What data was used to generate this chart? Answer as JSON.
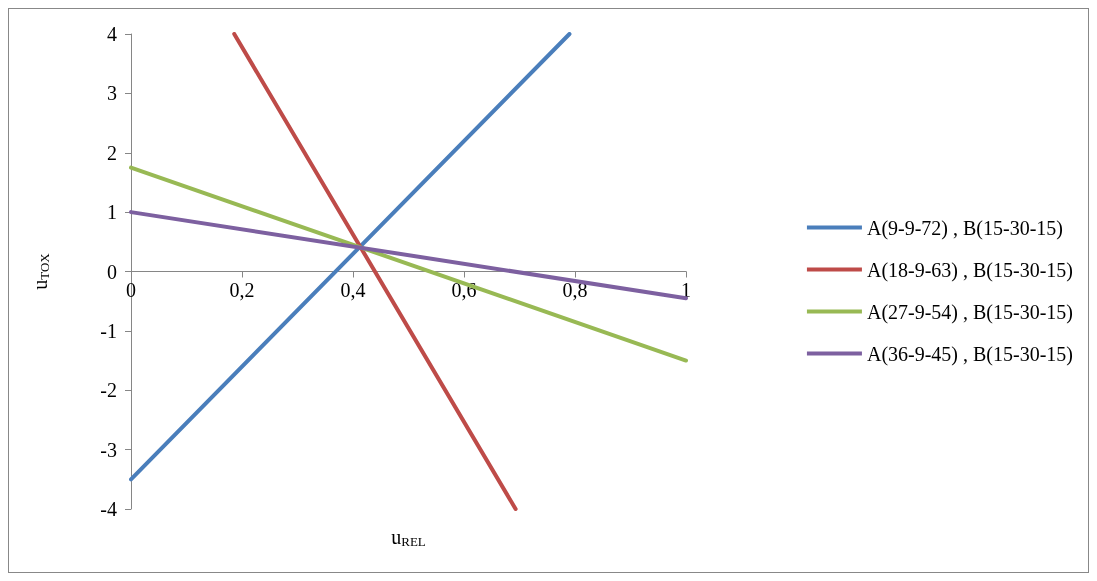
{
  "chart_data": {
    "type": "line",
    "xlabel": "u$_{REL}$",
    "ylabel": "u$_{TOX}$",
    "xlim": [
      0,
      1
    ],
    "xticks": [
      0,
      {
        "value": 0.2,
        "label": "0,2"
      },
      {
        "value": 0.4,
        "label": "0,4"
      },
      {
        "value": 0.6,
        "label": "0,6"
      },
      {
        "value": 0.8,
        "label": "0,8"
      },
      1
    ],
    "ylim": [
      -4,
      4
    ],
    "yticks": [
      -4,
      -3,
      -2,
      -1,
      0,
      1,
      2,
      3,
      4
    ],
    "series": [
      {
        "name": "A(9-9-72) , B(15-30-15)",
        "color": "#4a7ebb",
        "x": [
          0,
          0.79
        ],
        "values": [
          -3.5,
          4
        ]
      },
      {
        "name": "A(18-9-63) , B(15-30-15)",
        "color": "#be4b48",
        "x": [
          0.186,
          0.693
        ],
        "values": [
          4,
          -4
        ]
      },
      {
        "name": "A(27-9-54) , B(15-30-15)",
        "color": "#98b954",
        "x": [
          0,
          1
        ],
        "values": [
          1.75,
          -1.5
        ]
      },
      {
        "name": "A(36-9-45) , B(15-30-15)",
        "color": "#7d60a0",
        "x": [
          0,
          1
        ],
        "values": [
          1,
          -0.45
        ]
      }
    ],
    "grid": false,
    "legend": "right",
    "marker": "none",
    "line_style": "solid"
  }
}
